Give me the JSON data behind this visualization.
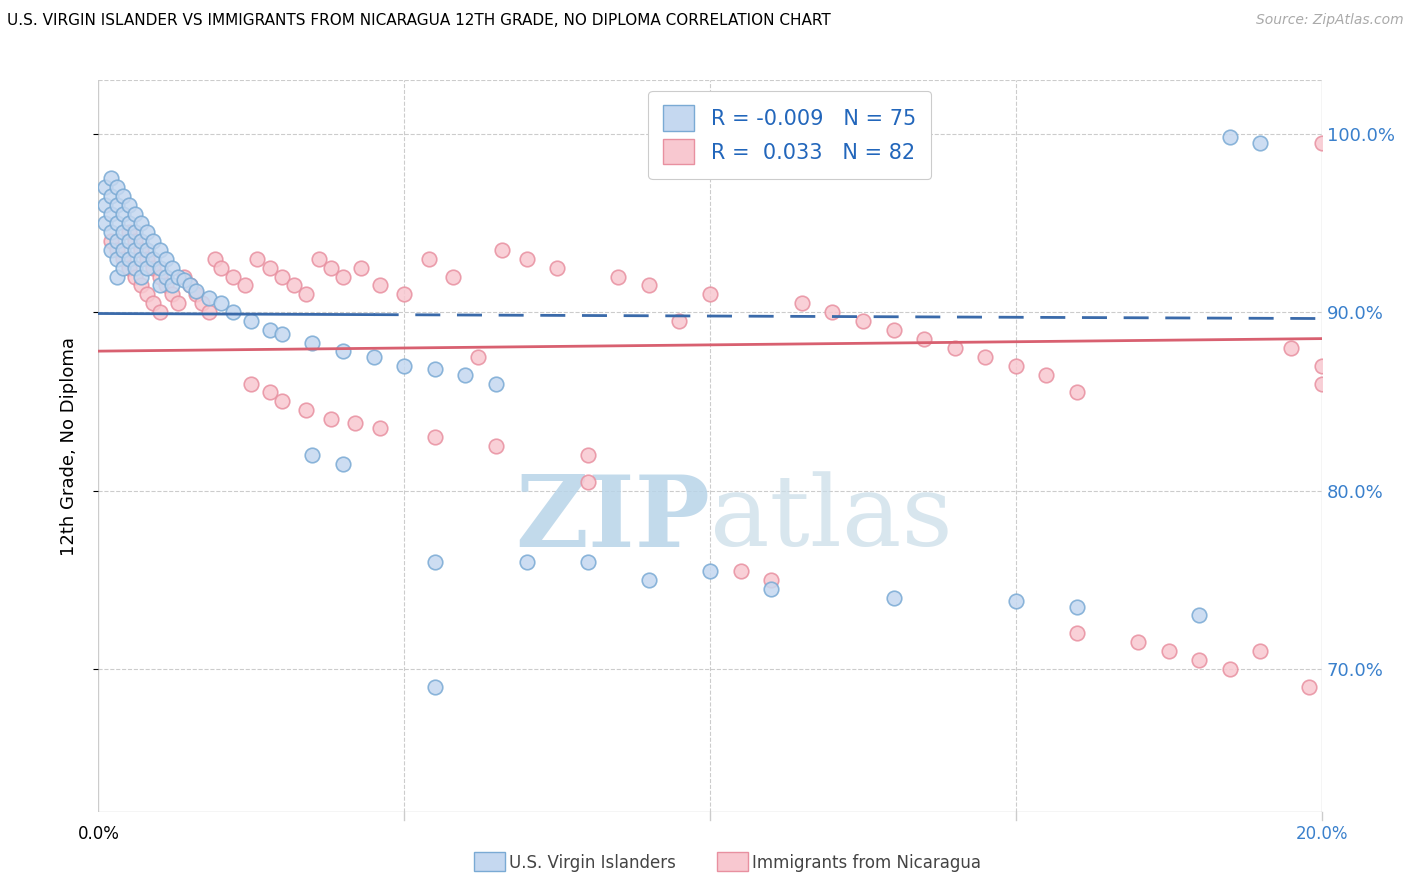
{
  "title": "U.S. VIRGIN ISLANDER VS IMMIGRANTS FROM NICARAGUA 12TH GRADE, NO DIPLOMA CORRELATION CHART",
  "source": "Source: ZipAtlas.com",
  "ylabel": "12th Grade, No Diploma",
  "ytick_labels": [
    "100.0%",
    "90.0%",
    "80.0%",
    "70.0%"
  ],
  "ytick_values": [
    1.0,
    0.9,
    0.8,
    0.7
  ],
  "xlim": [
    0.0,
    0.2
  ],
  "ylim": [
    0.62,
    1.03
  ],
  "R_blue": -0.009,
  "N_blue": 75,
  "R_pink": 0.033,
  "N_pink": 82,
  "color_blue_face": "#c5d8f0",
  "color_blue_edge": "#7aaad4",
  "color_pink_face": "#f8c8d0",
  "color_pink_edge": "#e890a0",
  "color_blue_line": "#3a6aaa",
  "color_pink_line": "#d86070",
  "watermark_zip": "ZIP",
  "watermark_atlas": "atlas",
  "watermark_color": "#c8dff0",
  "legend_blue_label": "R = -0.009   N = 75",
  "legend_pink_label": "R =  0.033   N = 82",
  "bottom_label_blue": "U.S. Virgin Islanders",
  "bottom_label_pink": "Immigrants from Nicaragua",
  "grid_color": "#cccccc",
  "blue_x": [
    0.001,
    0.001,
    0.001,
    0.002,
    0.002,
    0.002,
    0.002,
    0.002,
    0.003,
    0.003,
    0.003,
    0.003,
    0.003,
    0.003,
    0.004,
    0.004,
    0.004,
    0.004,
    0.004,
    0.005,
    0.005,
    0.005,
    0.005,
    0.006,
    0.006,
    0.006,
    0.006,
    0.007,
    0.007,
    0.007,
    0.007,
    0.008,
    0.008,
    0.008,
    0.009,
    0.009,
    0.01,
    0.01,
    0.01,
    0.011,
    0.011,
    0.012,
    0.012,
    0.013,
    0.014,
    0.015,
    0.016,
    0.018,
    0.02,
    0.022,
    0.025,
    0.028,
    0.03,
    0.035,
    0.04,
    0.045,
    0.05,
    0.055,
    0.06,
    0.065,
    0.035,
    0.04,
    0.055,
    0.07,
    0.09,
    0.11,
    0.13,
    0.15,
    0.16,
    0.18,
    0.185,
    0.19,
    0.055,
    0.08,
    0.1
  ],
  "blue_y": [
    0.97,
    0.96,
    0.95,
    0.975,
    0.965,
    0.955,
    0.945,
    0.935,
    0.97,
    0.96,
    0.95,
    0.94,
    0.93,
    0.92,
    0.965,
    0.955,
    0.945,
    0.935,
    0.925,
    0.96,
    0.95,
    0.94,
    0.93,
    0.955,
    0.945,
    0.935,
    0.925,
    0.95,
    0.94,
    0.93,
    0.92,
    0.945,
    0.935,
    0.925,
    0.94,
    0.93,
    0.935,
    0.925,
    0.915,
    0.93,
    0.92,
    0.925,
    0.915,
    0.92,
    0.918,
    0.915,
    0.912,
    0.908,
    0.905,
    0.9,
    0.895,
    0.89,
    0.888,
    0.883,
    0.878,
    0.875,
    0.87,
    0.868,
    0.865,
    0.86,
    0.82,
    0.815,
    0.76,
    0.76,
    0.75,
    0.745,
    0.74,
    0.738,
    0.735,
    0.73,
    0.998,
    0.995,
    0.69,
    0.76,
    0.755
  ],
  "pink_x": [
    0.002,
    0.003,
    0.004,
    0.005,
    0.005,
    0.006,
    0.006,
    0.007,
    0.007,
    0.008,
    0.008,
    0.009,
    0.009,
    0.01,
    0.01,
    0.011,
    0.012,
    0.013,
    0.014,
    0.015,
    0.016,
    0.017,
    0.018,
    0.019,
    0.02,
    0.022,
    0.024,
    0.026,
    0.028,
    0.03,
    0.032,
    0.034,
    0.036,
    0.038,
    0.04,
    0.043,
    0.046,
    0.05,
    0.054,
    0.058,
    0.062,
    0.066,
    0.07,
    0.075,
    0.08,
    0.085,
    0.09,
    0.095,
    0.1,
    0.105,
    0.11,
    0.115,
    0.12,
    0.125,
    0.13,
    0.135,
    0.14,
    0.145,
    0.15,
    0.155,
    0.025,
    0.028,
    0.03,
    0.034,
    0.038,
    0.042,
    0.046,
    0.055,
    0.065,
    0.08,
    0.16,
    0.17,
    0.175,
    0.18,
    0.185,
    0.19,
    0.195,
    0.198,
    0.2,
    0.2,
    0.16,
    0.2
  ],
  "pink_y": [
    0.94,
    0.935,
    0.93,
    0.945,
    0.925,
    0.94,
    0.92,
    0.935,
    0.915,
    0.93,
    0.91,
    0.925,
    0.905,
    0.92,
    0.9,
    0.915,
    0.91,
    0.905,
    0.92,
    0.915,
    0.91,
    0.905,
    0.9,
    0.93,
    0.925,
    0.92,
    0.915,
    0.93,
    0.925,
    0.92,
    0.915,
    0.91,
    0.93,
    0.925,
    0.92,
    0.925,
    0.915,
    0.91,
    0.93,
    0.92,
    0.875,
    0.935,
    0.93,
    0.925,
    0.805,
    0.92,
    0.915,
    0.895,
    0.91,
    0.755,
    0.75,
    0.905,
    0.9,
    0.895,
    0.89,
    0.885,
    0.88,
    0.875,
    0.87,
    0.865,
    0.86,
    0.855,
    0.85,
    0.845,
    0.84,
    0.838,
    0.835,
    0.83,
    0.825,
    0.82,
    0.72,
    0.715,
    0.71,
    0.705,
    0.7,
    0.71,
    0.88,
    0.69,
    0.87,
    0.86,
    0.855,
    0.995
  ]
}
